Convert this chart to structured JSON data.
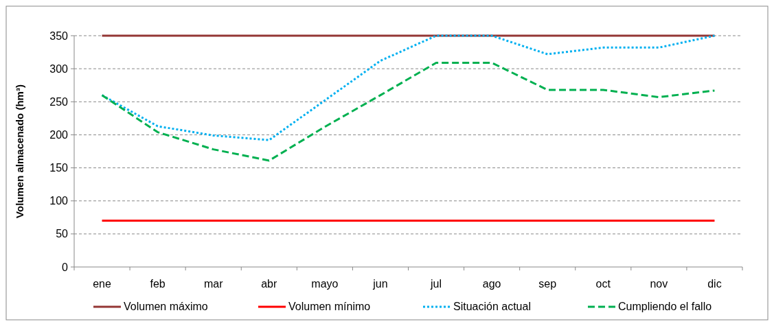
{
  "chart_data": {
    "type": "line",
    "ylabel": "Volumen almacenado (hm³)",
    "categories": [
      "ene",
      "feb",
      "mar",
      "abr",
      "mayo",
      "jun",
      "jul",
      "ago",
      "sep",
      "oct",
      "nov",
      "dic"
    ],
    "series": [
      {
        "name": "Volumen máximo",
        "color": "#943634",
        "line_style": "solid",
        "values": [
          350,
          350,
          350,
          350,
          350,
          350,
          350,
          350,
          350,
          350,
          350,
          350
        ]
      },
      {
        "name": "Volumen mínimo",
        "color": "#ff0000",
        "line_style": "solid",
        "values": [
          70,
          70,
          70,
          70,
          70,
          70,
          70,
          70,
          70,
          70,
          70,
          70
        ]
      },
      {
        "name": "Situación actual",
        "color": "#00b0f0",
        "line_style": "dotted",
        "values": [
          260,
          213,
          199,
          192,
          252,
          312,
          350,
          350,
          322,
          332,
          332,
          350
        ]
      },
      {
        "name": "Cumpliendo el fallo",
        "color": "#00b050",
        "line_style": "dashed",
        "values": [
          260,
          204,
          178,
          161,
          212,
          260,
          309,
          309,
          268,
          268,
          257,
          267
        ]
      }
    ],
    "ylim": [
      0,
      350
    ],
    "yticks": [
      0,
      50,
      100,
      150,
      200,
      250,
      300,
      350
    ],
    "grid": "y",
    "legend": "bottom",
    "marker": "none"
  }
}
